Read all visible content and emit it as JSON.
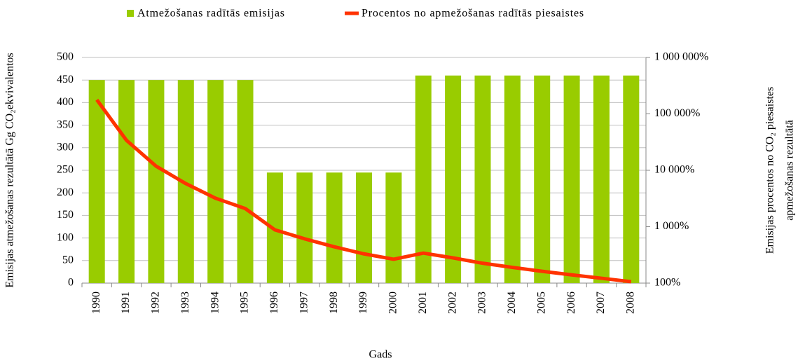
{
  "chart_data": {
    "type": "bar_line",
    "categories": [
      "1990",
      "1991",
      "1992",
      "1993",
      "1994",
      "1995",
      "1996",
      "1997",
      "1998",
      "1999",
      "2000",
      "2001",
      "2002",
      "2003",
      "2004",
      "2005",
      "2006",
      "2007",
      "2008"
    ],
    "series": [
      {
        "name": "Atmežošanas radītās emisijas",
        "type": "bar",
        "color": "#99cc00",
        "values": [
          450,
          450,
          450,
          450,
          450,
          450,
          245,
          245,
          245,
          245,
          245,
          460,
          460,
          460,
          460,
          460,
          460,
          460,
          460
        ]
      },
      {
        "name": "Procentos no apmežošanas radītās piesaistes",
        "type": "line",
        "color": "#ff3300",
        "axis": "y2",
        "values": [
          178000,
          34000,
          11800,
          5800,
          3200,
          2100,
          880,
          610,
          440,
          330,
          265,
          340,
          280,
          225,
          190,
          162,
          140,
          122,
          106
        ]
      }
    ],
    "ylim": [
      0,
      500
    ],
    "yticks": [
      0,
      50,
      100,
      150,
      200,
      250,
      300,
      350,
      400,
      450,
      500
    ],
    "y2lim": [
      100,
      1000000
    ],
    "y2_log_scale": true,
    "y2ticks": [
      {
        "value": 100,
        "label": "100%"
      },
      {
        "value": 1000,
        "label": "1 000%"
      },
      {
        "value": 10000,
        "label": "10 000%"
      },
      {
        "value": 100000,
        "label": "100 000%"
      },
      {
        "value": 1000000,
        "label": "1 000 000%"
      }
    ],
    "xlabel": "Gads",
    "ylabel": "Emisijas atmežošanas rezultātā Gg CO₂ekvivalentos",
    "y2label": [
      "Emisijas procentos no CO₂ piesaistes",
      "apmežošanas rezultātā"
    ],
    "grid": true,
    "legend": "top"
  }
}
